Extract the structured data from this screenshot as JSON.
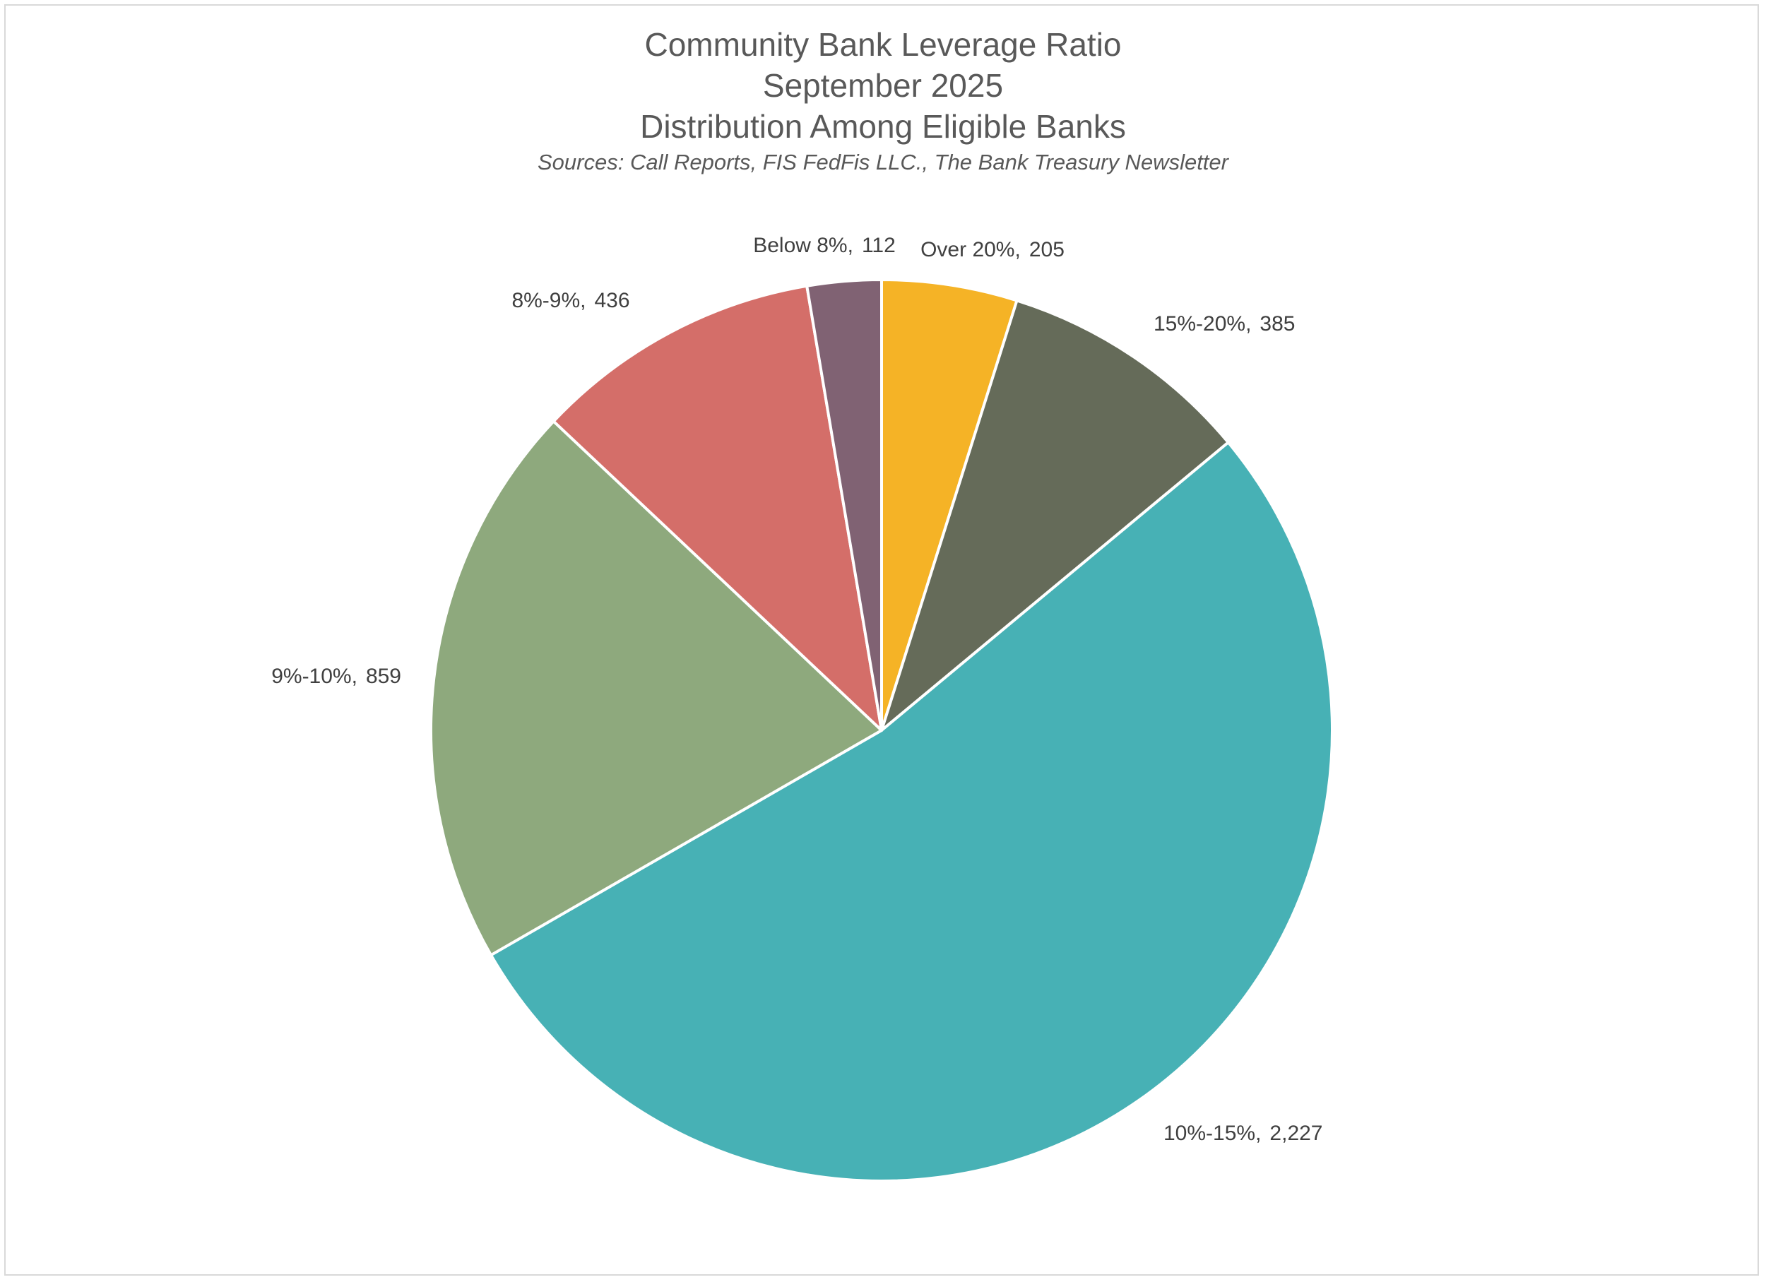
{
  "chart_data": {
    "type": "pie",
    "title_lines": [
      "Community Bank Leverage Ratio",
      "September 2025",
      "Distribution Among Eligible Banks"
    ],
    "subtitle": "Sources: Call Reports, FIS FedFis LLC., The Bank Treasury Newsletter",
    "start_angle_deg": 0,
    "direction": "clockwise",
    "legend": "none",
    "slices": [
      {
        "label": "Over 20%",
        "value": 205,
        "value_text": "205",
        "color": "#F5B326"
      },
      {
        "label": "15%-20%",
        "value": 385,
        "value_text": "385",
        "color": "#656B59"
      },
      {
        "label": "10%-15%",
        "value": 2227,
        "value_text": "2,227",
        "color": "#47B1B5"
      },
      {
        "label": "9%-10%",
        "value": 859,
        "value_text": "859",
        "color": "#8EA97D"
      },
      {
        "label": "8%-9%",
        "value": 436,
        "value_text": "436",
        "color": "#D46E69"
      },
      {
        "label": "Below 8%",
        "value": 112,
        "value_text": "112",
        "color": "#806273"
      }
    ]
  }
}
